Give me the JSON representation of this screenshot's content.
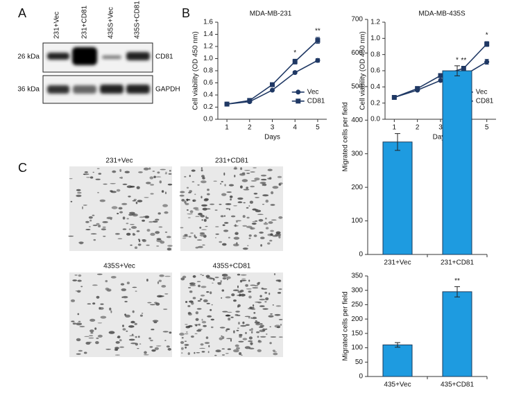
{
  "panel_labels": [
    "A",
    "B",
    "C"
  ],
  "blot": {
    "lanes": [
      "231+Vec",
      "231+CD81",
      "435S+Vec",
      "435S+CD81"
    ],
    "markers": [
      "26 kDa",
      "36 kDa"
    ],
    "proteins": [
      "CD81",
      "GAPDH"
    ]
  },
  "images": {
    "captions": [
      "231+Vec",
      "231+CD81",
      "435S+Vec",
      "435S+CD81"
    ]
  },
  "chart_data": [
    {
      "type": "line",
      "title": "MDA-MB-231",
      "x_label": "Days",
      "y_label": "Cell viability (OD 450 nm)",
      "x": [
        1,
        2,
        3,
        4,
        5
      ],
      "xlim": [
        0.6,
        5.4
      ],
      "xticks": [
        1,
        2,
        3,
        4,
        5
      ],
      "ylim": [
        0,
        1.6
      ],
      "yticks": [
        {
          "value": 0,
          "label": "0.0"
        },
        0.2,
        0.4,
        0.6,
        0.8,
        {
          "value": 1,
          "label": "1.0"
        },
        1.2,
        1.4,
        1.6
      ],
      "grid": false,
      "legend": "right",
      "series": [
        {
          "name": "Vec",
          "color": "#1f3864",
          "marker": "circle",
          "values": [
            0.25,
            0.29,
            0.48,
            0.77,
            0.97
          ],
          "errors": [
            0.01,
            0.01,
            0.01,
            0.02,
            0.03
          ]
        },
        {
          "name": "CD81",
          "color": "#1f3864",
          "marker": "square",
          "values": [
            0.25,
            0.31,
            0.57,
            0.95,
            1.3
          ],
          "errors": [
            0.01,
            0.01,
            0.01,
            0.04,
            0.05
          ]
        }
      ],
      "annotations": [
        {
          "x": 4,
          "text": "*"
        },
        {
          "x": 5,
          "text": "**"
        }
      ]
    },
    {
      "type": "line",
      "title": "MDA-MB-435S",
      "x_label": "Days",
      "y_label": "Cell viability (OD 450 nm)",
      "x": [
        1,
        2,
        3,
        4,
        5
      ],
      "xlim": [
        0.6,
        5.4
      ],
      "xticks": [
        1,
        2,
        3,
        4,
        5
      ],
      "ylim": [
        0,
        1.2
      ],
      "yticks": [
        {
          "value": 0,
          "label": "0.0"
        },
        0.2,
        0.4,
        0.6,
        0.8,
        {
          "value": 1,
          "label": "1.0"
        },
        1.2
      ],
      "grid": false,
      "legend": "right",
      "series": [
        {
          "name": "Vec",
          "color": "#1f3864",
          "marker": "circle",
          "values": [
            0.27,
            0.36,
            0.48,
            0.54,
            0.71
          ],
          "errors": [
            0.01,
            0.01,
            0.01,
            0.01,
            0.03
          ]
        },
        {
          "name": "CD81",
          "color": "#1f3864",
          "marker": "square",
          "values": [
            0.27,
            0.38,
            0.54,
            0.63,
            0.93
          ],
          "errors": [
            0.01,
            0.01,
            0.01,
            0.02,
            0.03
          ]
        }
      ],
      "annotations": [
        {
          "x": 4,
          "text": "**"
        },
        {
          "x": 5,
          "text": "*"
        }
      ]
    },
    {
      "type": "bar",
      "y_label": "Migrated cells per field",
      "categories": [
        "231+Vec",
        "231+CD81"
      ],
      "values": [
        335,
        547
      ],
      "errors": [
        25,
        15
      ],
      "color": "#1e9be0",
      "ylim": [
        0,
        700
      ],
      "yticks": [
        0,
        100,
        200,
        300,
        400,
        500,
        600,
        700
      ],
      "grid": false,
      "annotations": [
        {
          "category": 1,
          "text": "*"
        }
      ]
    },
    {
      "type": "bar",
      "y_label": "Migrated cells per field",
      "categories": [
        "435+Vec",
        "435+CD81"
      ],
      "values": [
        110,
        295
      ],
      "errors": [
        8,
        18
      ],
      "color": "#1e9be0",
      "ylim": [
        0,
        350
      ],
      "yticks": [
        0,
        50,
        100,
        150,
        200,
        250,
        300,
        350
      ],
      "grid": false,
      "annotations": [
        {
          "category": 1,
          "text": "**"
        }
      ]
    }
  ]
}
